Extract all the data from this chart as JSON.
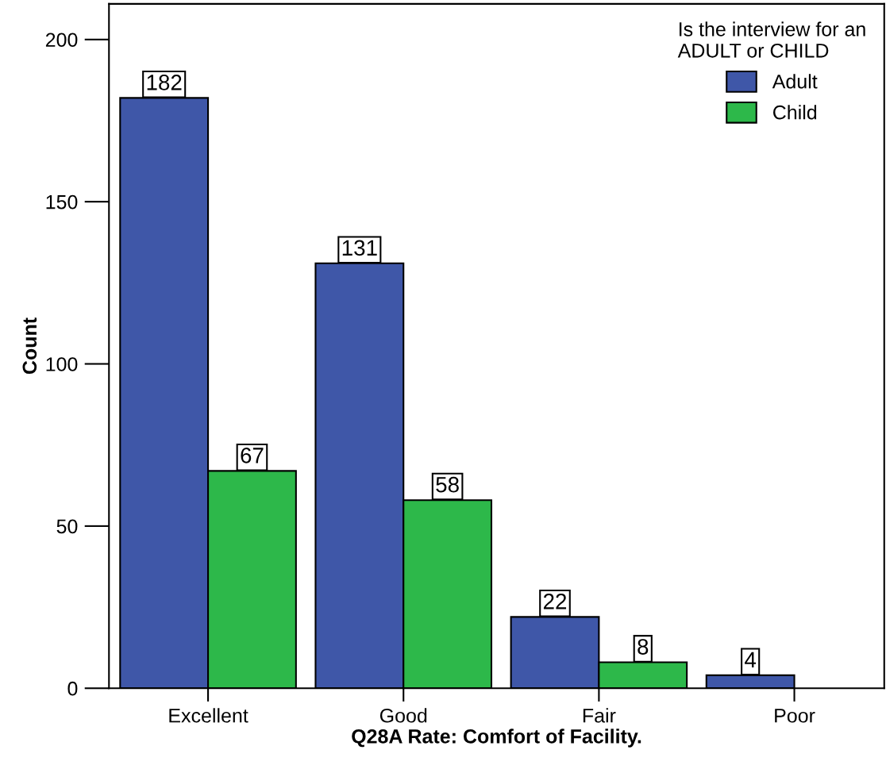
{
  "chart_data": {
    "type": "bar",
    "xlabel": "Q28A Rate: Comfort of Facility.",
    "ylabel": "Count",
    "categories": [
      "Excellent",
      "Good",
      "Fair",
      "Poor"
    ],
    "series": [
      {
        "name": "Adult",
        "color": "#3f57a8",
        "values": [
          182,
          131,
          22,
          4
        ]
      },
      {
        "name": "Child",
        "color": "#2db84a",
        "values": [
          67,
          58,
          8,
          null
        ]
      }
    ],
    "ylim": [
      0,
      211
    ],
    "yticks": [
      0,
      50,
      100,
      150,
      200
    ],
    "legend_title": "Is the interview for an\nADULT or CHILD",
    "legend": "top right",
    "data_labels": true,
    "grid": false
  }
}
